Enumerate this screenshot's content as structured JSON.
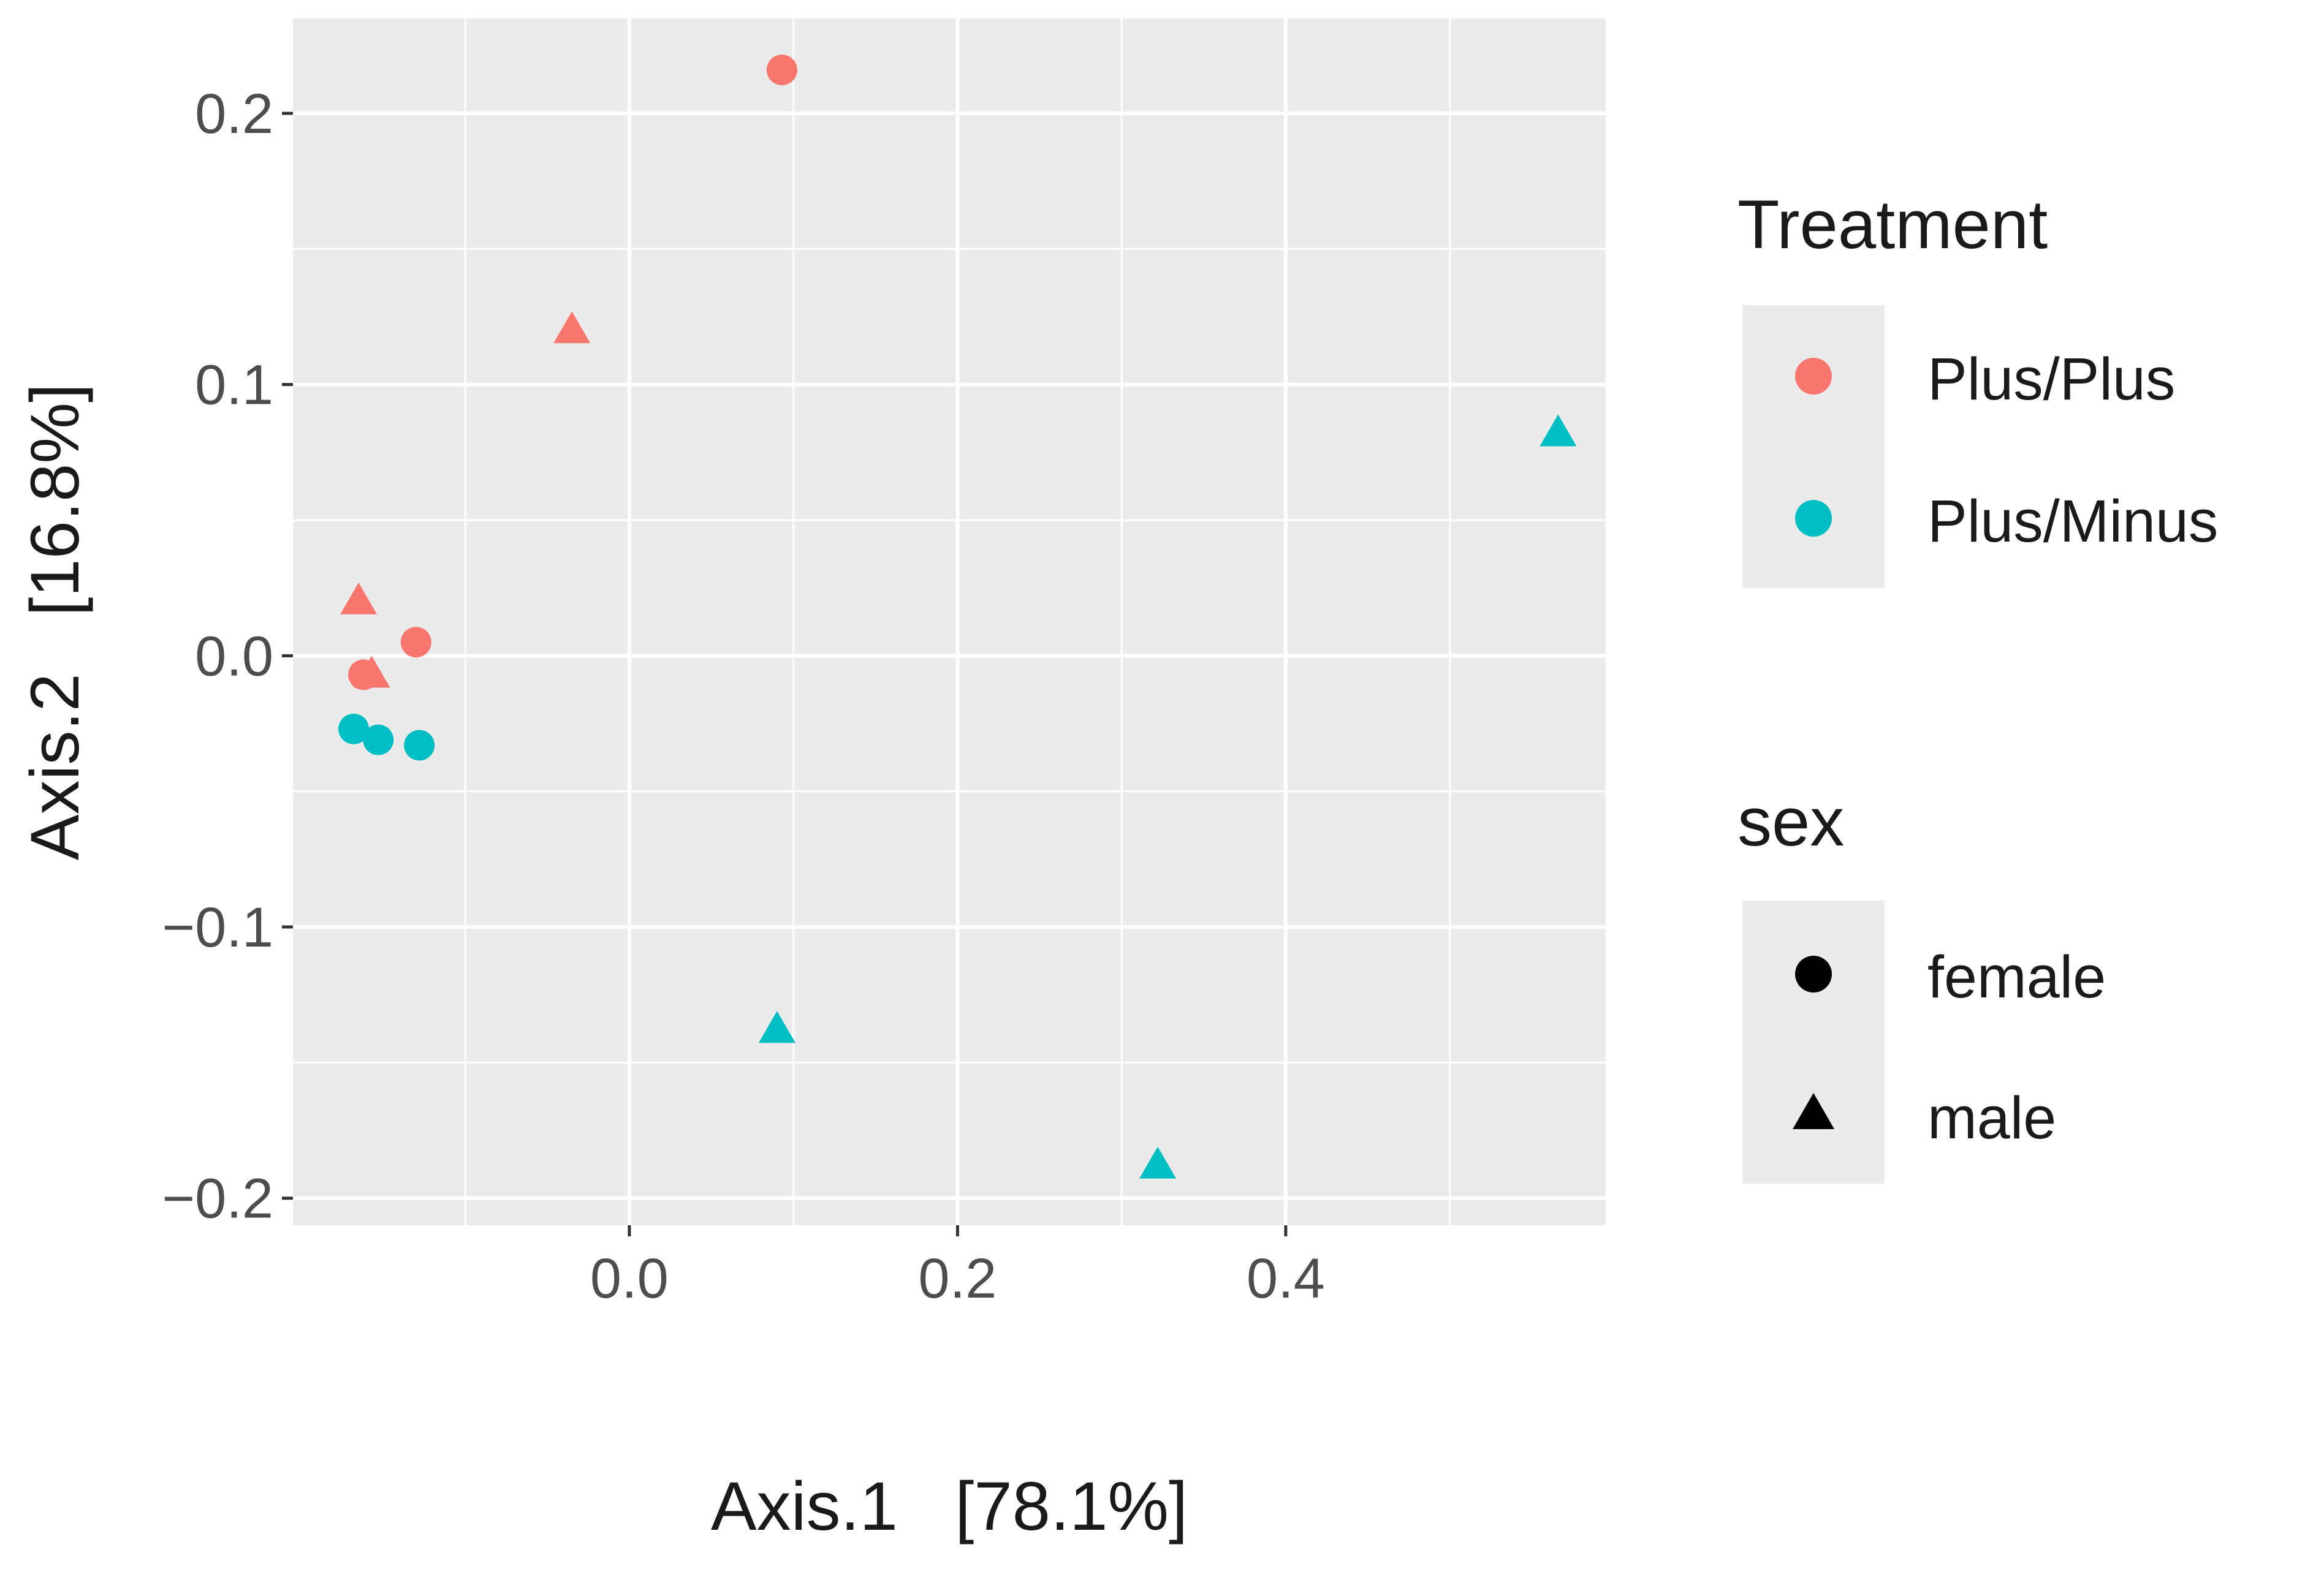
{
  "chart_data": {
    "type": "scatter",
    "title": "",
    "xlabel": "Axis.1   [78.1%]",
    "ylabel": "Axis.2   [16.8%]",
    "xlim": [
      -0.205,
      0.595
    ],
    "ylim": [
      -0.21,
      0.235
    ],
    "x_ticks": [
      0.0,
      0.2,
      0.4
    ],
    "x_tick_labels": [
      "0.0",
      "0.2",
      "0.4"
    ],
    "y_ticks": [
      -0.2,
      -0.1,
      0.0,
      0.1,
      0.2
    ],
    "y_tick_labels": [
      "−0.2",
      "−0.1",
      "0.0",
      "0.1",
      "0.2"
    ],
    "x_minor": [
      -0.1,
      0.1,
      0.3,
      0.5
    ],
    "y_minor": [
      -0.15,
      -0.05,
      0.05,
      0.15
    ],
    "colors": {
      "Plus/Plus": "#F8766D",
      "Plus/Minus": "#00BFC4",
      "panel": "#EBEBEB",
      "grid": "#FFFFFF",
      "text": "#1A1A1A",
      "tick_text": "#4D4D4D"
    },
    "points": [
      {
        "x": 0.093,
        "y": 0.216,
        "treatment": "Plus/Plus",
        "sex": "female"
      },
      {
        "x": -0.035,
        "y": 0.12,
        "treatment": "Plus/Plus",
        "sex": "male"
      },
      {
        "x": -0.165,
        "y": 0.02,
        "treatment": "Plus/Plus",
        "sex": "male"
      },
      {
        "x": -0.13,
        "y": 0.005,
        "treatment": "Plus/Plus",
        "sex": "female"
      },
      {
        "x": -0.162,
        "y": -0.007,
        "treatment": "Plus/Plus",
        "sex": "female"
      },
      {
        "x": -0.157,
        "y": -0.007,
        "treatment": "Plus/Plus",
        "sex": "male"
      },
      {
        "x": -0.168,
        "y": -0.027,
        "treatment": "Plus/Minus",
        "sex": "female"
      },
      {
        "x": -0.153,
        "y": -0.031,
        "treatment": "Plus/Minus",
        "sex": "female"
      },
      {
        "x": -0.128,
        "y": -0.033,
        "treatment": "Plus/Minus",
        "sex": "female"
      },
      {
        "x": 0.566,
        "y": 0.082,
        "treatment": "Plus/Minus",
        "sex": "male"
      },
      {
        "x": 0.09,
        "y": -0.138,
        "treatment": "Plus/Minus",
        "sex": "male"
      },
      {
        "x": 0.322,
        "y": -0.188,
        "treatment": "Plus/Minus",
        "sex": "male"
      }
    ],
    "legend": {
      "placement": "right",
      "treatment": {
        "title": "Treatment",
        "items": [
          "Plus/Plus",
          "Plus/Minus"
        ]
      },
      "sex": {
        "title": "sex",
        "items": [
          "female",
          "male"
        ]
      }
    }
  }
}
